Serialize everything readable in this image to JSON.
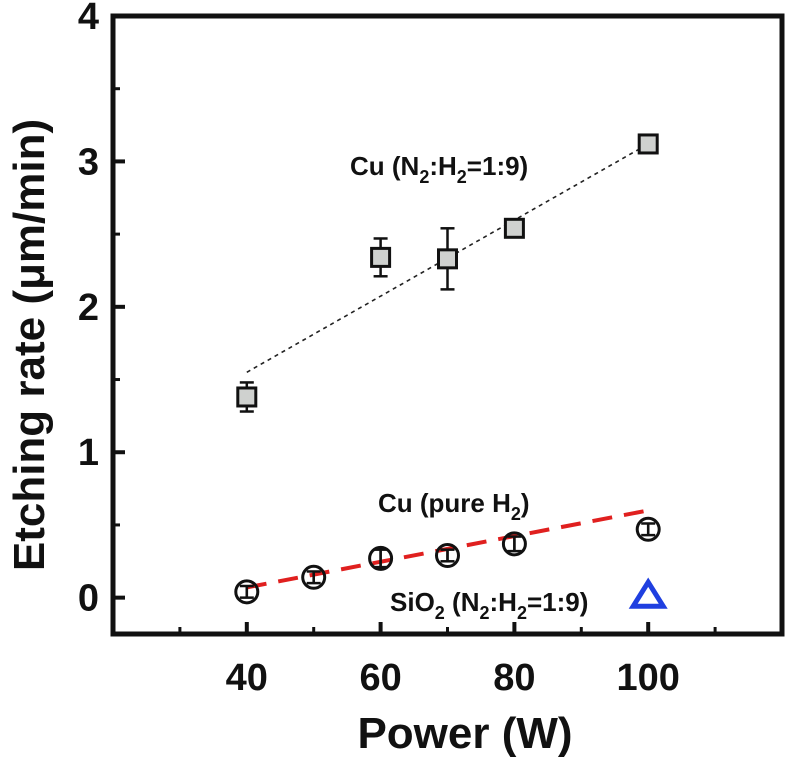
{
  "chart_data": {
    "type": "scatter",
    "xlabel": "Power (W)",
    "ylabel": "Etching rate (μm/min)",
    "xlim": [
      20,
      120
    ],
    "ylim": [
      -0.25,
      4
    ],
    "xticks": [
      "40",
      "60",
      "80",
      "100"
    ],
    "yticks": [
      "0",
      "1",
      "2",
      "3",
      "4"
    ],
    "series": [
      {
        "name": "Cu (N2:H2=1:9)",
        "marker": "square",
        "color": "#cfd1cf",
        "x": [
          40,
          60,
          70,
          80,
          100
        ],
        "y": [
          1.38,
          2.34,
          2.33,
          2.54,
          3.12
        ],
        "err": [
          0.1,
          0.13,
          0.21,
          0.05,
          0.03
        ],
        "trend": {
          "style": "dotted",
          "color": "#222222",
          "x": [
            40,
            100
          ],
          "y": [
            1.55,
            3.12
          ]
        }
      },
      {
        "name": "Cu (pure H2)",
        "marker": "circle",
        "color": "#ffffff",
        "x": [
          40,
          50,
          60,
          70,
          80,
          100
        ],
        "y": [
          0.04,
          0.14,
          0.27,
          0.29,
          0.37,
          0.47
        ],
        "err": [
          0.04,
          0.04,
          0.06,
          0.04,
          0.05,
          0.04
        ],
        "trend": {
          "style": "dashed",
          "color": "#e0201f",
          "x": [
            40,
            100
          ],
          "y": [
            0.07,
            0.6
          ]
        }
      },
      {
        "name": "SiO2 (N2:H2=1:9)",
        "marker": "triangle",
        "color": "#1f3fe0",
        "x": [
          100
        ],
        "y": [
          0.01
        ]
      }
    ],
    "annotations": {
      "cu_n2h2": {
        "parts": [
          "Cu (N",
          "2",
          ":H",
          "2",
          "=1:9)"
        ]
      },
      "cu_pure": {
        "parts": [
          "Cu (pure H",
          "2",
          ")"
        ]
      },
      "sio2": {
        "parts": [
          "SiO",
          "2",
          " (N",
          "2",
          ":H",
          "2",
          "=1:9)"
        ]
      }
    }
  }
}
